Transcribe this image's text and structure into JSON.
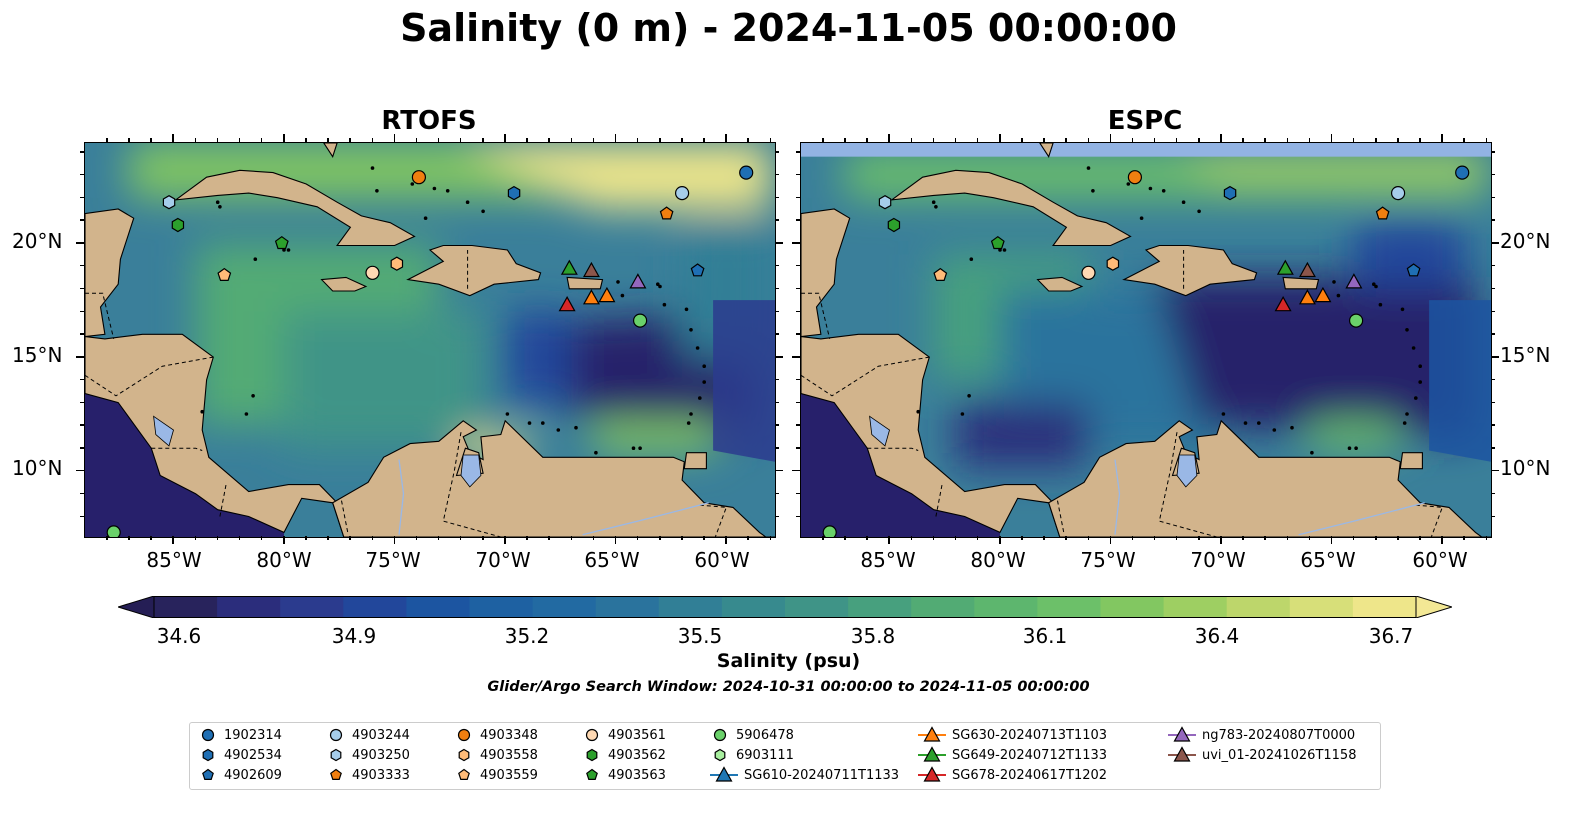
{
  "title": "Salinity (0 m) - 2024-11-05 00:00:00",
  "panels": [
    {
      "title": "RTOFS"
    },
    {
      "title": "ESPC"
    }
  ],
  "lat_labels": [
    "20°N",
    "15°N",
    "10°N"
  ],
  "lon_labels": [
    "85°W",
    "80°W",
    "75°W",
    "70°W",
    "65°W",
    "60°W"
  ],
  "colorbar": {
    "label": "Salinity (psu)",
    "ticks": [
      "34.6",
      "34.9",
      "35.2",
      "35.5",
      "35.8",
      "36.1",
      "36.4",
      "36.7"
    ],
    "colors": [
      "#28235c",
      "#2b2d7c",
      "#2b3b8e",
      "#22479b",
      "#1c55a1",
      "#1e61a2",
      "#226aa2",
      "#2a739d",
      "#317f96",
      "#378a8e",
      "#3f9487",
      "#47a07e",
      "#52ab74",
      "#5db66e",
      "#6cc069",
      "#82c761",
      "#9ecf62",
      "#bdd66b",
      "#d7df79",
      "#eee68a"
    ],
    "extend_low_color": "#251e55",
    "extend_high_color": "#f3e895"
  },
  "search_window": "Glider/Argo Search Window: 2024-10-31 00:00:00 to 2024-11-05 00:00:00",
  "map_colors": {
    "land": "#d2b48c",
    "ocean_low": "#27206b",
    "ocean_mid": "#3a7f9a",
    "ocean_high": "#6cc069",
    "ocean_max": "#eee68a",
    "lake": "#9ab8e6",
    "espc_nodata_band": "#92b3e3"
  },
  "legend": {
    "entries": [
      {
        "label": "1902314",
        "marker": "circle",
        "color": "#1f6fb4"
      },
      {
        "label": "4902534",
        "marker": "hexagon",
        "color": "#1f6fb4"
      },
      {
        "label": "4902609",
        "marker": "pentagon",
        "color": "#1f6fb4"
      },
      {
        "label": "4903244",
        "marker": "circle",
        "color": "#a6cdea"
      },
      {
        "label": "4903250",
        "marker": "hexagon",
        "color": "#a6cdea"
      },
      {
        "label": "4903333",
        "marker": "pentagon",
        "color": "#f07f10"
      },
      {
        "label": "4903348",
        "marker": "circle",
        "color": "#f07f10"
      },
      {
        "label": "4903558",
        "marker": "hexagon",
        "color": "#ffbb78"
      },
      {
        "label": "4903559",
        "marker": "pentagon",
        "color": "#ffbb78"
      },
      {
        "label": "4903561",
        "marker": "circle",
        "color": "#ffd9b3"
      },
      {
        "label": "4903562",
        "marker": "hexagon",
        "color": "#2ca02c"
      },
      {
        "label": "4903563",
        "marker": "pentagon",
        "color": "#2ca02c"
      },
      {
        "label": "5906478",
        "marker": "circle",
        "color": "#6ad16a"
      },
      {
        "label": "6903111",
        "marker": "hexagon",
        "color": "#a8ef9f"
      },
      {
        "label": "SG610-20240711T1133",
        "marker": "triangle",
        "color": "#1f77b4"
      },
      {
        "label": "SG630-20240713T1103",
        "marker": "triangle",
        "color": "#ff7f0e"
      },
      {
        "label": "SG649-20240712T1133",
        "marker": "triangle",
        "color": "#2ca02c"
      },
      {
        "label": "SG678-20240617T1202",
        "marker": "triangle",
        "color": "#d62728"
      },
      {
        "label": "ng783-20240807T0000",
        "marker": "triangle",
        "color": "#9467bd"
      },
      {
        "label": "uvi_01-20241026T1158",
        "marker": "triangle",
        "color": "#8c564b"
      }
    ]
  },
  "observations": [
    {
      "id": "1902314",
      "lon": -59.1,
      "lat": 23.1
    },
    {
      "id": "4902534",
      "lon": -69.6,
      "lat": 22.2
    },
    {
      "id": "4902609",
      "lon": -61.3,
      "lat": 18.8
    },
    {
      "id": "4903244",
      "lon": -62.0,
      "lat": 22.2
    },
    {
      "id": "4903250",
      "lon": -85.2,
      "lat": 21.8
    },
    {
      "id": "4903333",
      "lon": -62.7,
      "lat": 21.3
    },
    {
      "id": "4903348",
      "lon": -73.9,
      "lat": 22.9
    },
    {
      "id": "4903558",
      "lon": -74.9,
      "lat": 19.1
    },
    {
      "id": "4903559",
      "lon": -82.7,
      "lat": 18.6
    },
    {
      "id": "4903561",
      "lon": -76.0,
      "lat": 18.7
    },
    {
      "id": "4903562",
      "lon": -84.8,
      "lat": 20.8
    },
    {
      "id": "4903563",
      "lon": -80.1,
      "lat": 20.0
    },
    {
      "id": "5906478",
      "lon": -63.9,
      "lat": 16.6
    },
    {
      "id": "5906478b",
      "lon": -87.7,
      "lat": 7.3
    },
    {
      "id": "SG649-20240712T1133",
      "lon": -67.1,
      "lat": 18.9
    },
    {
      "id": "uvi_01-20241026T1158",
      "lon": -66.1,
      "lat": 18.8
    },
    {
      "id": "ng783-20240807T0000",
      "lon": -64.0,
      "lat": 18.3
    },
    {
      "id": "SG630-20240713T1103",
      "lon": -66.1,
      "lat": 17.6
    },
    {
      "id": "SG630-20240713T1103b",
      "lon": -65.4,
      "lat": 17.7
    },
    {
      "id": "SG678-20240617T1202",
      "lon": -67.2,
      "lat": 17.3
    }
  ]
}
